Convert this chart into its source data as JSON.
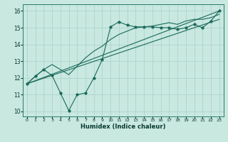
{
  "bg_color": "#c8e8e0",
  "grid_color": "#aed4cc",
  "line_color": "#1a6a5a",
  "xlabel": "Humidex (Indice chaleur)",
  "xlim": [
    -0.5,
    23.5
  ],
  "ylim": [
    9.7,
    16.4
  ],
  "yticks": [
    10,
    11,
    12,
    13,
    14,
    15,
    16
  ],
  "xticks": [
    0,
    1,
    2,
    3,
    4,
    5,
    6,
    7,
    8,
    9,
    10,
    11,
    12,
    13,
    14,
    15,
    16,
    17,
    18,
    19,
    20,
    21,
    22,
    23
  ],
  "line1_x": [
    0,
    1,
    2,
    3,
    4,
    5,
    6,
    7,
    8,
    9,
    10,
    11,
    12,
    13,
    14,
    15,
    16,
    17,
    18,
    19,
    20,
    21,
    22,
    23
  ],
  "line1_y": [
    11.65,
    12.1,
    12.5,
    12.15,
    11.1,
    10.05,
    11.0,
    11.1,
    12.0,
    13.1,
    15.05,
    15.35,
    15.15,
    15.05,
    15.05,
    15.05,
    15.0,
    15.0,
    14.9,
    15.0,
    15.2,
    15.0,
    15.4,
    16.0
  ],
  "line2_x": [
    0,
    23
  ],
  "line2_y": [
    11.65,
    16.0
  ],
  "line3_x": [
    0,
    23
  ],
  "line3_y": [
    11.65,
    15.5
  ],
  "line4_x": [
    0,
    1,
    2,
    3,
    4,
    5,
    6,
    7,
    8,
    9,
    10,
    11,
    12,
    13,
    14,
    15,
    16,
    17,
    18,
    19,
    20,
    21,
    22,
    23
  ],
  "line4_y": [
    11.65,
    12.1,
    12.5,
    12.8,
    12.5,
    12.2,
    12.7,
    13.2,
    13.6,
    13.9,
    14.3,
    14.6,
    14.8,
    15.0,
    15.05,
    15.1,
    15.2,
    15.3,
    15.2,
    15.4,
    15.5,
    15.5,
    15.6,
    15.8
  ]
}
